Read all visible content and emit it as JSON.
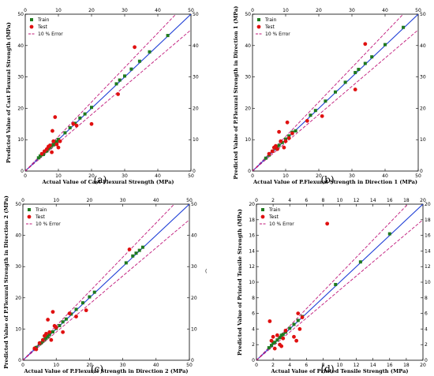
{
  "colors": {
    "train": "#1f7a1f",
    "test": "#e01010",
    "ideal_line": "#1f3fd6",
    "error_line": "#c0187a",
    "axis": "#000000"
  },
  "legend_labels": {
    "train": "Train",
    "test": "Test",
    "error": "10 % Error"
  },
  "stray_mark": "(",
  "chart_data": [
    {
      "id": "a",
      "type": "scatter",
      "caption": "(a)",
      "xlabel": "Actual Value of Cast Flexural Strength (MPa)",
      "ylabel": "Predicted Value of Cast Flexural Strength (MPa)",
      "xlim": [
        0,
        50
      ],
      "ylim": [
        0,
        50
      ],
      "ticks": [
        0,
        10,
        20,
        30,
        40,
        50
      ],
      "legend": "top-left",
      "error_band": 0.1,
      "series": [
        {
          "name": "Train",
          "points": [
            [
              4,
              4.2
            ],
            [
              4.5,
              4.8
            ],
            [
              5,
              5.2
            ],
            [
              5.5,
              5.3
            ],
            [
              6,
              6.2
            ],
            [
              6.5,
              6.4
            ],
            [
              7,
              7.1
            ],
            [
              7.5,
              7.6
            ],
            [
              8,
              8.1
            ],
            [
              8.5,
              8.4
            ],
            [
              9,
              9.2
            ],
            [
              9.5,
              9.4
            ],
            [
              10,
              10.1
            ],
            [
              12,
              12.2
            ],
            [
              13.5,
              13.8
            ],
            [
              15,
              15.2
            ],
            [
              16.5,
              16.9
            ],
            [
              18,
              18.2
            ],
            [
              20,
              20.3
            ],
            [
              27.5,
              27.8
            ],
            [
              28.5,
              29
            ],
            [
              30,
              30.3
            ],
            [
              32,
              32.5
            ],
            [
              34.5,
              35
            ],
            [
              37.5,
              38
            ],
            [
              43,
              43.2
            ]
          ]
        },
        {
          "name": "Test",
          "points": [
            [
              5,
              5.5
            ],
            [
              5.8,
              6.3
            ],
            [
              6.5,
              7
            ],
            [
              7,
              7.8
            ],
            [
              7.5,
              8.2
            ],
            [
              8,
              6
            ],
            [
              8.2,
              12.8
            ],
            [
              8.5,
              9.5
            ],
            [
              9,
              17.2
            ],
            [
              9.5,
              8.5
            ],
            [
              10,
              7.5
            ],
            [
              10.5,
              9.5
            ],
            [
              14.5,
              15
            ],
            [
              15.5,
              14.5
            ],
            [
              20,
              15
            ],
            [
              28,
              24.5
            ],
            [
              33,
              39.5
            ]
          ]
        }
      ]
    },
    {
      "id": "b",
      "type": "scatter",
      "caption": "(b)",
      "xlabel": "Actual Value of P.Flexural Strength in Direction 1 (MPa)",
      "ylabel": "Predicted Value of P.Flexural Strength in Direction 1 (MPa)",
      "xlim": [
        0,
        50
      ],
      "ylim": [
        0,
        50
      ],
      "ticks": [
        0,
        10,
        20,
        30,
        40,
        50
      ],
      "legend": "top-left",
      "error_band": 0.1,
      "series": [
        {
          "name": "Train",
          "points": [
            [
              4,
              4.1
            ],
            [
              5,
              5.1
            ],
            [
              6,
              6.3
            ],
            [
              7,
              7.2
            ],
            [
              7.5,
              7.6
            ],
            [
              8,
              8.2
            ],
            [
              9,
              9.1
            ],
            [
              10,
              10.2
            ],
            [
              11,
              11.2
            ],
            [
              12,
              12.4
            ],
            [
              13,
              12.8
            ],
            [
              17.5,
              17.8
            ],
            [
              19,
              19.3
            ],
            [
              22,
              22.3
            ],
            [
              25,
              25.2
            ],
            [
              28,
              28.3
            ],
            [
              31,
              31.4
            ],
            [
              32,
              32.4
            ],
            [
              34,
              34.3
            ],
            [
              36,
              36.4
            ],
            [
              40,
              40.3
            ],
            [
              45.5,
              45.8
            ]
          ]
        },
        {
          "name": "Test",
          "points": [
            [
              5,
              5.5
            ],
            [
              6,
              6.3
            ],
            [
              6.5,
              7.5
            ],
            [
              7,
              8
            ],
            [
              7.5,
              7
            ],
            [
              8,
              12.5
            ],
            [
              8.5,
              9.5
            ],
            [
              9.5,
              7.5
            ],
            [
              10,
              9.5
            ],
            [
              10.5,
              15.5
            ],
            [
              11,
              10.5
            ],
            [
              12,
              12
            ],
            [
              16.5,
              16
            ],
            [
              21,
              17.5
            ],
            [
              31,
              26
            ],
            [
              34,
              40.5
            ]
          ]
        }
      ]
    },
    {
      "id": "c",
      "type": "scatter",
      "caption": "(c)",
      "xlabel": "Actual Value of P.Flexural Strength in Direction 2 (MPa)",
      "ylabel": "Predicted Value of P.Flexural Strength in Direction 2 (MPa)",
      "xlim": [
        0,
        50
      ],
      "ylim": [
        0,
        50
      ],
      "ticks": [
        0,
        10,
        20,
        30,
        40,
        50
      ],
      "legend": "top-left",
      "error_band": 0.1,
      "series": [
        {
          "name": "Train",
          "points": [
            [
              4,
              4.1
            ],
            [
              5,
              5.2
            ],
            [
              5.5,
              5.6
            ],
            [
              6,
              6.1
            ],
            [
              6.5,
              6.7
            ],
            [
              7,
              7.1
            ],
            [
              7.5,
              7.6
            ],
            [
              8,
              8.2
            ],
            [
              9,
              9.1
            ],
            [
              10,
              10.2
            ],
            [
              11,
              11.1
            ],
            [
              12,
              12.3
            ],
            [
              13,
              13.2
            ],
            [
              14.5,
              14.8
            ],
            [
              16,
              16.3
            ],
            [
              18,
              18.4
            ],
            [
              20,
              20.3
            ],
            [
              21.5,
              21.8
            ],
            [
              31,
              31.2
            ],
            [
              33,
              33.4
            ],
            [
              34,
              34.3
            ],
            [
              35,
              35.2
            ],
            [
              36,
              36.2
            ]
          ]
        },
        {
          "name": "Test",
          "points": [
            [
              3.5,
              3.8
            ],
            [
              4,
              3.5
            ],
            [
              5,
              5.5
            ],
            [
              6,
              6.5
            ],
            [
              6.5,
              7.8
            ],
            [
              7,
              8.5
            ],
            [
              7.5,
              13
            ],
            [
              8,
              9
            ],
            [
              8.5,
              6.5
            ],
            [
              9,
              15.5
            ],
            [
              9.5,
              11
            ],
            [
              10,
              10.5
            ],
            [
              12,
              9
            ],
            [
              14,
              15
            ],
            [
              16,
              14
            ],
            [
              19,
              16
            ],
            [
              32,
              35.5
            ]
          ]
        }
      ]
    },
    {
      "id": "d",
      "type": "scatter",
      "caption": "(d)",
      "xlabel": "Actual Value of Printed Tensile Strength (MPa)",
      "ylabel": "Predicted Value of Printed Tensile Strength (MPa)",
      "xlim": [
        0,
        20
      ],
      "ylim": [
        0,
        20
      ],
      "ticks": [
        0,
        2,
        4,
        6,
        8,
        10,
        12,
        14,
        16,
        18,
        20
      ],
      "legend": "top-left",
      "error_band": 0.1,
      "series": [
        {
          "name": "Train",
          "points": [
            [
              1.5,
              1.6
            ],
            [
              1.8,
              1.9
            ],
            [
              2,
              2.2
            ],
            [
              2.2,
              2.3
            ],
            [
              2.5,
              2.6
            ],
            [
              2.8,
              2.9
            ],
            [
              3,
              3.2
            ],
            [
              3.2,
              3.3
            ],
            [
              3.5,
              3.6
            ],
            [
              4,
              4.1
            ],
            [
              4.5,
              4.6
            ],
            [
              5,
              5.1
            ],
            [
              5.5,
              5.6
            ],
            [
              9.5,
              9.7
            ],
            [
              12.5,
              12.6
            ],
            [
              16,
              16.2
            ]
          ]
        },
        {
          "name": "Test",
          "points": [
            [
              1.6,
              5
            ],
            [
              1.8,
              2.5
            ],
            [
              2,
              3
            ],
            [
              2.2,
              1.5
            ],
            [
              2.5,
              3.2
            ],
            [
              2.8,
              2
            ],
            [
              3,
              1.8
            ],
            [
              3.2,
              2.8
            ],
            [
              3.5,
              3.8
            ],
            [
              4.5,
              3
            ],
            [
              4.8,
              2.5
            ],
            [
              5,
              6
            ],
            [
              5.2,
              4
            ],
            [
              5.5,
              5.5
            ],
            [
              8.5,
              17.5
            ]
          ]
        }
      ]
    }
  ]
}
